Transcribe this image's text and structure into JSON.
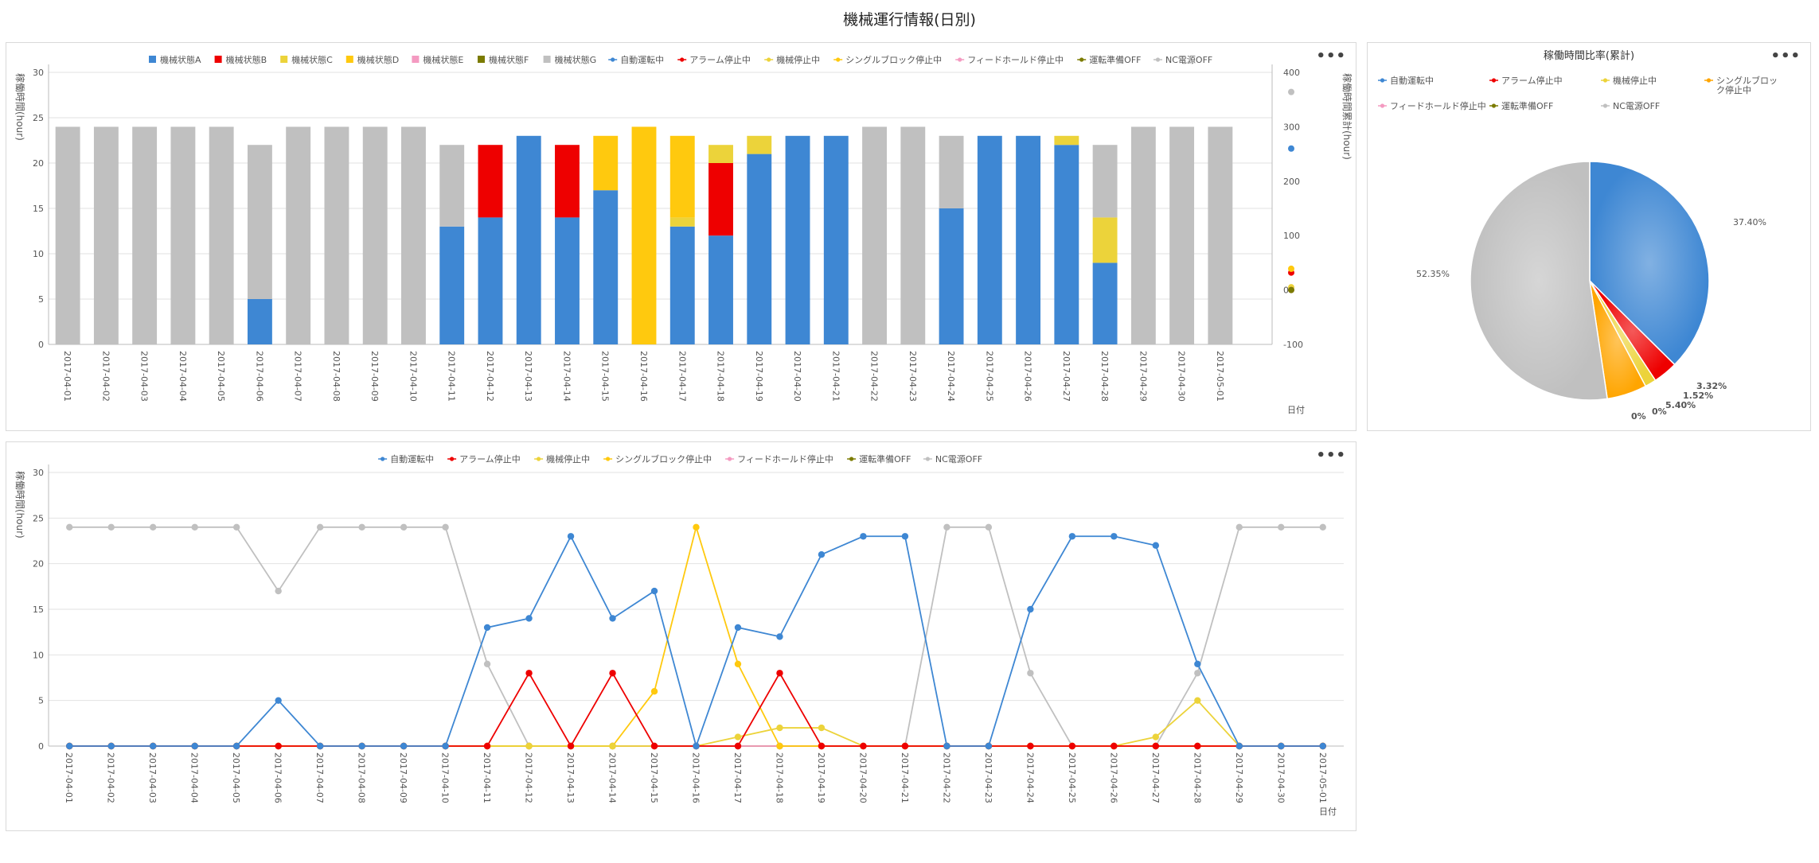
{
  "page_title": "機械運行情報(日別)",
  "more_label": "•••",
  "chart_data": [
    {
      "id": "stacked",
      "type": "bar",
      "stacked": true,
      "categories": [
        "2017-04-01",
        "2017-04-02",
        "2017-04-03",
        "2017-04-04",
        "2017-04-05",
        "2017-04-06",
        "2017-04-07",
        "2017-04-08",
        "2017-04-09",
        "2017-04-10",
        "2017-04-11",
        "2017-04-12",
        "2017-04-13",
        "2017-04-14",
        "2017-04-15",
        "2017-04-16",
        "2017-04-17",
        "2017-04-18",
        "2017-04-19",
        "2017-04-20",
        "2017-04-21",
        "2017-04-22",
        "2017-04-23",
        "2017-04-24",
        "2017-04-25",
        "2017-04-26",
        "2017-04-27",
        "2017-04-28",
        "2017-04-29",
        "2017-04-30",
        "2017-05-01"
      ],
      "series": [
        {
          "name": "機械状態A",
          "color": "#3e87d3",
          "values": [
            0,
            0,
            0,
            0,
            0,
            5,
            0,
            0,
            0,
            0,
            13,
            14,
            23,
            14,
            17,
            0,
            13,
            12,
            21,
            23,
            23,
            0,
            0,
            15,
            23,
            23,
            22,
            9,
            0,
            0,
            0
          ]
        },
        {
          "name": "機械状態B",
          "color": "#ee0000",
          "values": [
            0,
            0,
            0,
            0,
            0,
            0,
            0,
            0,
            0,
            0,
            0,
            8,
            0,
            8,
            0,
            0,
            0,
            8,
            0,
            0,
            0,
            0,
            0,
            0,
            0,
            0,
            0,
            0,
            0,
            0,
            0
          ]
        },
        {
          "name": "機械状態C",
          "color": "#ecd33a",
          "values": [
            0,
            0,
            0,
            0,
            0,
            0,
            0,
            0,
            0,
            0,
            0,
            0,
            0,
            0,
            0,
            0,
            1,
            2,
            2,
            0,
            0,
            0,
            0,
            0,
            0,
            0,
            1,
            5,
            0,
            0,
            0
          ]
        },
        {
          "name": "機械状態D",
          "color": "#ffc90e",
          "values": [
            0,
            0,
            0,
            0,
            0,
            0,
            0,
            0,
            0,
            0,
            0,
            0,
            0,
            0,
            6,
            24,
            9,
            0,
            0,
            0,
            0,
            0,
            0,
            0,
            0,
            0,
            0,
            0,
            0,
            0,
            0
          ]
        },
        {
          "name": "機械状態E",
          "color": "#f49ac1",
          "values": [
            0,
            0,
            0,
            0,
            0,
            0,
            0,
            0,
            0,
            0,
            0,
            0,
            0,
            0,
            0,
            0,
            0,
            0,
            0,
            0,
            0,
            0,
            0,
            0,
            0,
            0,
            0,
            0,
            0,
            0,
            0
          ]
        },
        {
          "name": "機械状態F",
          "color": "#7b7b00",
          "values": [
            0,
            0,
            0,
            0,
            0,
            0,
            0,
            0,
            0,
            0,
            0,
            0,
            0,
            0,
            0,
            0,
            0,
            0,
            0,
            0,
            0,
            0,
            0,
            0,
            0,
            0,
            0,
            0,
            0,
            0,
            0
          ]
        },
        {
          "name": "機械状態G",
          "color": "#c0c0c0",
          "values": [
            24,
            24,
            24,
            24,
            24,
            17,
            24,
            24,
            24,
            24,
            9,
            0,
            0,
            0,
            0,
            0,
            0,
            0,
            0,
            0,
            0,
            24,
            24,
            8,
            0,
            0,
            0,
            8,
            24,
            24,
            24
          ]
        }
      ],
      "scatter_series": [
        {
          "name": "自動運転中",
          "color": "#3e87d3",
          "value": 260
        },
        {
          "name": "アラーム停止中",
          "color": "#ee0000",
          "value": 32
        },
        {
          "name": "機械停止中",
          "color": "#ecd33a",
          "value": 5
        },
        {
          "name": "シングルブロック停止中",
          "color": "#ffc90e",
          "value": 39
        },
        {
          "name": "フィードホールド停止中",
          "color": "#f49ac1",
          "value": 0
        },
        {
          "name": "運転準備OFF",
          "color": "#7b7b00",
          "value": 0
        },
        {
          "name": "NC電源OFF",
          "color": "#c0c0c0",
          "value": 364
        }
      ],
      "ylabel": "稼働時間(hour)",
      "y2label": "稼働時間累計(hour)",
      "xlabel": "日付",
      "ylim": [
        0,
        30
      ],
      "yticks": [
        "0",
        "5",
        "10",
        "15",
        "20",
        "25",
        "30"
      ],
      "y2lim": [
        -100,
        400
      ],
      "y2ticks": [
        "-100",
        "0",
        "100",
        "200",
        "300",
        "400"
      ]
    },
    {
      "id": "line",
      "type": "line",
      "categories": [
        "2017-04-01",
        "2017-04-02",
        "2017-04-03",
        "2017-04-04",
        "2017-04-05",
        "2017-04-06",
        "2017-04-07",
        "2017-04-08",
        "2017-04-09",
        "2017-04-10",
        "2017-04-11",
        "2017-04-12",
        "2017-04-13",
        "2017-04-14",
        "2017-04-15",
        "2017-04-16",
        "2017-04-17",
        "2017-04-18",
        "2017-04-19",
        "2017-04-20",
        "2017-04-21",
        "2017-04-22",
        "2017-04-23",
        "2017-04-24",
        "2017-04-25",
        "2017-04-26",
        "2017-04-27",
        "2017-04-28",
        "2017-04-29",
        "2017-04-30",
        "2017-05-01"
      ],
      "series": [
        {
          "name": "自動運転中",
          "color": "#3e87d3",
          "values": [
            0,
            0,
            0,
            0,
            0,
            5,
            0,
            0,
            0,
            0,
            13,
            14,
            23,
            14,
            17,
            0,
            13,
            12,
            21,
            23,
            23,
            0,
            0,
            15,
            23,
            23,
            22,
            9,
            0,
            0,
            0
          ]
        },
        {
          "name": "アラーム停止中",
          "color": "#ee0000",
          "values": [
            0,
            0,
            0,
            0,
            0,
            0,
            0,
            0,
            0,
            0,
            0,
            8,
            0,
            8,
            0,
            0,
            0,
            8,
            0,
            0,
            0,
            0,
            0,
            0,
            0,
            0,
            0,
            0,
            0,
            0,
            0
          ]
        },
        {
          "name": "機械停止中",
          "color": "#ecd33a",
          "values": [
            0,
            0,
            0,
            0,
            0,
            0,
            0,
            0,
            0,
            0,
            0,
            0,
            0,
            0,
            0,
            0,
            1,
            2,
            2,
            0,
            0,
            0,
            0,
            0,
            0,
            0,
            1,
            5,
            0,
            0,
            0
          ]
        },
        {
          "name": "シングルブロック停止中",
          "color": "#ffc90e",
          "values": [
            0,
            0,
            0,
            0,
            0,
            0,
            0,
            0,
            0,
            0,
            0,
            0,
            0,
            0,
            6,
            24,
            9,
            0,
            0,
            0,
            0,
            0,
            0,
            0,
            0,
            0,
            0,
            0,
            0,
            0,
            0
          ]
        },
        {
          "name": "フィードホールド停止中",
          "color": "#f49ac1",
          "values": [
            0,
            0,
            0,
            0,
            0,
            0,
            0,
            0,
            0,
            0,
            0,
            0,
            0,
            0,
            0,
            0,
            0,
            0,
            0,
            0,
            0,
            0,
            0,
            0,
            0,
            0,
            0,
            0,
            0,
            0,
            0
          ]
        },
        {
          "name": "運転準備OFF",
          "color": "#7b7b00",
          "values": [
            0,
            0,
            0,
            0,
            0,
            0,
            0,
            0,
            0,
            0,
            0,
            0,
            0,
            0,
            0,
            0,
            0,
            0,
            0,
            0,
            0,
            0,
            0,
            0,
            0,
            0,
            0,
            0,
            0,
            0,
            0
          ]
        },
        {
          "name": "NC電源OFF",
          "color": "#c0c0c0",
          "values": [
            24,
            24,
            24,
            24,
            24,
            17,
            24,
            24,
            24,
            24,
            9,
            0,
            0,
            0,
            0,
            0,
            0,
            0,
            0,
            0,
            0,
            24,
            24,
            8,
            0,
            0,
            0,
            8,
            24,
            24,
            24
          ]
        }
      ],
      "ylabel": "稼働時間(hour)",
      "xlabel": "日付",
      "ylim": [
        0,
        30
      ],
      "yticks": [
        "0",
        "5",
        "10",
        "15",
        "20",
        "25",
        "30"
      ]
    },
    {
      "id": "pie",
      "type": "pie",
      "title": "稼働時間比率(累計)",
      "slices": [
        {
          "name": "自動運転中",
          "color": "#3e87d3",
          "value": 37.4,
          "label": "37.40%"
        },
        {
          "name": "アラーム停止中",
          "color": "#ee0000",
          "value": 3.32,
          "label": "3.32%"
        },
        {
          "name": "機械停止中",
          "color": "#ecd33a",
          "value": 1.52,
          "label": "1.52%"
        },
        {
          "name": "シングルブロック停止中",
          "color": "#ffa500",
          "value": 5.4,
          "label": "5.40%"
        },
        {
          "name": "フィードホールド停止中",
          "color": "#f49ac1",
          "value": 0,
          "label": "0%"
        },
        {
          "name": "運転準備OFF",
          "color": "#7b7b00",
          "value": 0,
          "label": "0%"
        },
        {
          "name": "NC電源OFF",
          "color": "#c0c0c0",
          "value": 52.35,
          "label": "52.35%"
        }
      ],
      "legend_items": [
        {
          "text": "自動運転中",
          "color": "#3e87d3"
        },
        {
          "text": "アラーム停止中",
          "color": "#ee0000"
        },
        {
          "text": "機械停止中",
          "color": "#ecd33a"
        },
        {
          "text": "シングルブロック停止中",
          "color": "#ffa500"
        },
        {
          "text": "フィードホールド停止中",
          "color": "#f49ac1"
        },
        {
          "text": "運転準備OFF",
          "color": "#7b7b00"
        },
        {
          "text": "NC電源OFF",
          "color": "#c0c0c0"
        }
      ]
    }
  ]
}
